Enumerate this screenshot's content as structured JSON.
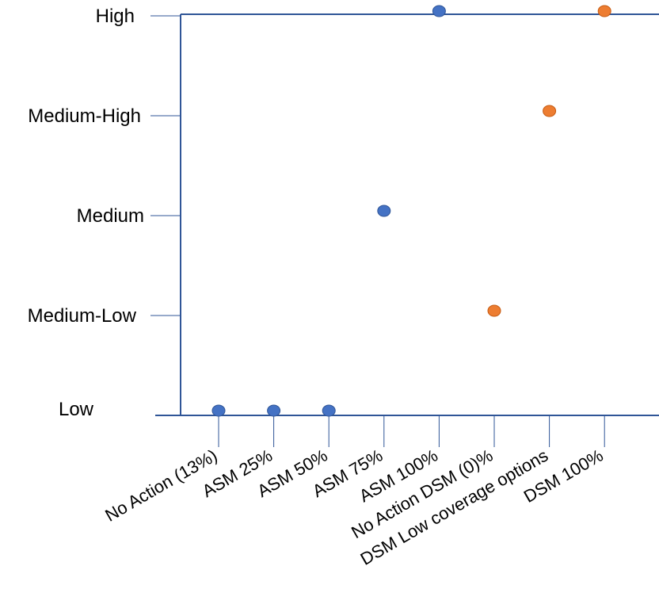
{
  "chart_data": {
    "type": "scatter",
    "y_levels": [
      "Low",
      "Medium-Low",
      "Medium",
      "Medium-High",
      "High"
    ],
    "ylim": [
      0,
      4
    ],
    "categories": [
      "No Action (13%)",
      "ASM 25%",
      "ASM 50%",
      "ASM 75%",
      "ASM 100%",
      "No Action DSM (0)%",
      "DSM Low coverage options",
      "DSM 100%"
    ],
    "series": [
      {
        "color": "#4472c4",
        "points": [
          {
            "x": 0,
            "y": 0
          },
          {
            "x": 1,
            "y": 0
          },
          {
            "x": 2,
            "y": 0
          },
          {
            "x": 3,
            "y": 2
          },
          {
            "x": 4,
            "y": 4
          }
        ]
      },
      {
        "color": "#ed7d31",
        "points": [
          {
            "x": 5,
            "y": 1
          },
          {
            "x": 6,
            "y": 3
          },
          {
            "x": 7,
            "y": 4
          }
        ]
      }
    ],
    "grid": false,
    "legend": "none",
    "axis_color": "#2f5597"
  }
}
